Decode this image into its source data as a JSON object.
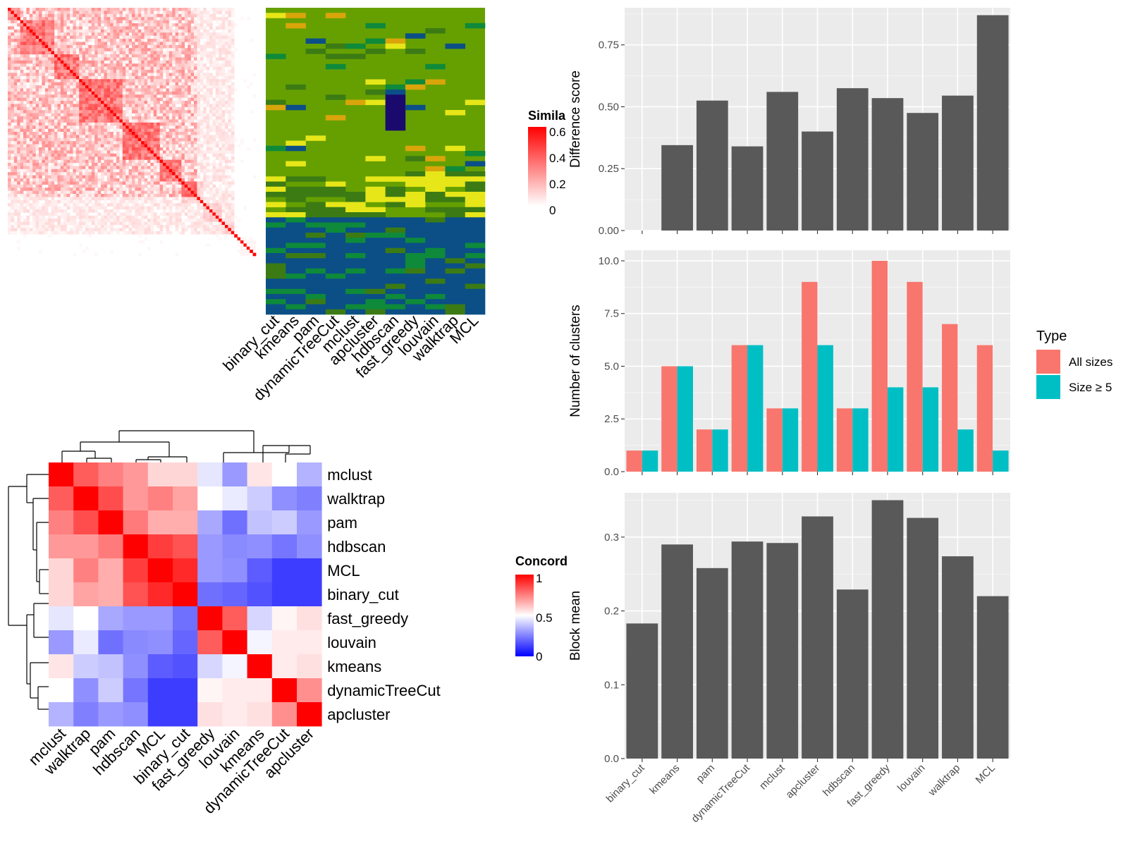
{
  "chart_data": [
    {
      "type": "heatmap",
      "panel": "similarity-matrix",
      "legend_title": "Simila",
      "legend_ticks": [
        "0.6",
        "0.4",
        "0.2",
        "0"
      ],
      "colors": {
        "low": "#ffffff",
        "high": "#ff0000"
      }
    },
    {
      "type": "heatmap",
      "panel": "cluster-assignments",
      "methods": [
        "binary_cut",
        "kmeans",
        "pam",
        "dynamicTreeCut",
        "mclust",
        "apcluster",
        "hdbscan",
        "fast_greedy",
        "louvain",
        "walktrap",
        "MCL"
      ],
      "palette": [
        "#66a000",
        "#0e8a3a",
        "#3c7b14",
        "#0b4f86",
        "#e6e619",
        "#d9a50a",
        "#1a0a6e",
        "#648a16"
      ]
    },
    {
      "type": "heatmap",
      "panel": "concordance",
      "legend_title": "Concord",
      "legend_ticks": [
        "1",
        "0.5",
        "0"
      ],
      "row_labels": [
        "mclust",
        "walktrap",
        "pam",
        "hdbscan",
        "MCL",
        "binary_cut",
        "fast_greedy",
        "louvain",
        "kmeans",
        "dynamicTreeCut",
        "apcluster"
      ],
      "col_labels": [
        "mclust",
        "walktrap",
        "pam",
        "hdbscan",
        "MCL",
        "binary_cut",
        "fast_greedy",
        "louvain",
        "kmeans",
        "dynamicTreeCut",
        "apcluster"
      ],
      "values": [
        [
          1.0,
          0.82,
          0.75,
          0.7,
          0.58,
          0.58,
          0.45,
          0.3,
          0.55,
          0.5,
          0.35
        ],
        [
          0.82,
          1.0,
          0.85,
          0.7,
          0.75,
          0.68,
          0.5,
          0.46,
          0.4,
          0.28,
          0.25
        ],
        [
          0.75,
          0.85,
          1.0,
          0.76,
          0.66,
          0.66,
          0.33,
          0.22,
          0.38,
          0.4,
          0.3
        ],
        [
          0.7,
          0.7,
          0.76,
          1.0,
          0.88,
          0.84,
          0.3,
          0.27,
          0.28,
          0.23,
          0.28
        ],
        [
          0.58,
          0.75,
          0.66,
          0.88,
          1.0,
          0.92,
          0.3,
          0.28,
          0.18,
          0.12,
          0.12
        ],
        [
          0.58,
          0.68,
          0.66,
          0.84,
          0.92,
          1.0,
          0.22,
          0.2,
          0.16,
          0.12,
          0.12
        ],
        [
          0.45,
          0.5,
          0.33,
          0.3,
          0.3,
          0.22,
          1.0,
          0.82,
          0.42,
          0.52,
          0.56
        ],
        [
          0.3,
          0.46,
          0.22,
          0.27,
          0.28,
          0.2,
          0.82,
          1.0,
          0.48,
          0.54,
          0.54
        ],
        [
          0.55,
          0.4,
          0.38,
          0.28,
          0.18,
          0.16,
          0.42,
          0.48,
          1.0,
          0.54,
          0.56
        ],
        [
          0.5,
          0.28,
          0.4,
          0.23,
          0.12,
          0.12,
          0.52,
          0.54,
          0.54,
          1.0,
          0.72
        ],
        [
          0.35,
          0.25,
          0.3,
          0.28,
          0.12,
          0.12,
          0.56,
          0.54,
          0.56,
          0.72,
          1.0
        ]
      ],
      "colors": {
        "low": "#0000ff",
        "mid": "#ffffff",
        "high": "#ff0000"
      }
    },
    {
      "type": "bar",
      "panel": "difference-score",
      "categories": [
        "binary_cut",
        "kmeans",
        "pam",
        "dynamicTreeCut",
        "mclust",
        "apcluster",
        "hdbscan",
        "fast_greedy",
        "louvain",
        "walktrap",
        "MCL"
      ],
      "values": [
        0.0,
        0.345,
        0.525,
        0.34,
        0.56,
        0.4,
        0.575,
        0.535,
        0.475,
        0.545,
        0.87
      ],
      "ylabel": "Difference score",
      "ylim": [
        0,
        0.9
      ],
      "yticks": [
        "0.00",
        "0.25",
        "0.50",
        "0.75"
      ],
      "color": "#595959"
    },
    {
      "type": "bar",
      "panel": "number-of-clusters",
      "categories": [
        "binary_cut",
        "kmeans",
        "pam",
        "dynamicTreeCut",
        "mclust",
        "apcluster",
        "hdbscan",
        "fast_greedy",
        "louvain",
        "walktrap",
        "MCL"
      ],
      "series": [
        {
          "name": "All sizes",
          "values": [
            1,
            5,
            2,
            6,
            3,
            9,
            3,
            10,
            9,
            7,
            6
          ],
          "color": "#f8766d"
        },
        {
          "name": "Size ≥ 5",
          "values": [
            1,
            5,
            2,
            6,
            3,
            6,
            3,
            4,
            4,
            2,
            1
          ],
          "color": "#00bfc4"
        }
      ],
      "ylabel": "Number of clusters",
      "ylim": [
        0,
        10.5
      ],
      "yticks": [
        "0.0",
        "2.5",
        "5.0",
        "7.5",
        "10.0"
      ],
      "legend_title": "Type",
      "legend_position": "right"
    },
    {
      "type": "bar",
      "panel": "block-mean",
      "categories": [
        "binary_cut",
        "kmeans",
        "pam",
        "dynamicTreeCut",
        "mclust",
        "apcluster",
        "hdbscan",
        "fast_greedy",
        "louvain",
        "walktrap",
        "MCL"
      ],
      "values": [
        0.183,
        0.29,
        0.258,
        0.294,
        0.292,
        0.328,
        0.229,
        0.35,
        0.326,
        0.274,
        0.22
      ],
      "ylabel": "Block mean",
      "ylim": [
        0,
        0.36
      ],
      "yticks": [
        "0.0",
        "0.1",
        "0.2",
        "0.3"
      ],
      "color": "#595959"
    }
  ]
}
